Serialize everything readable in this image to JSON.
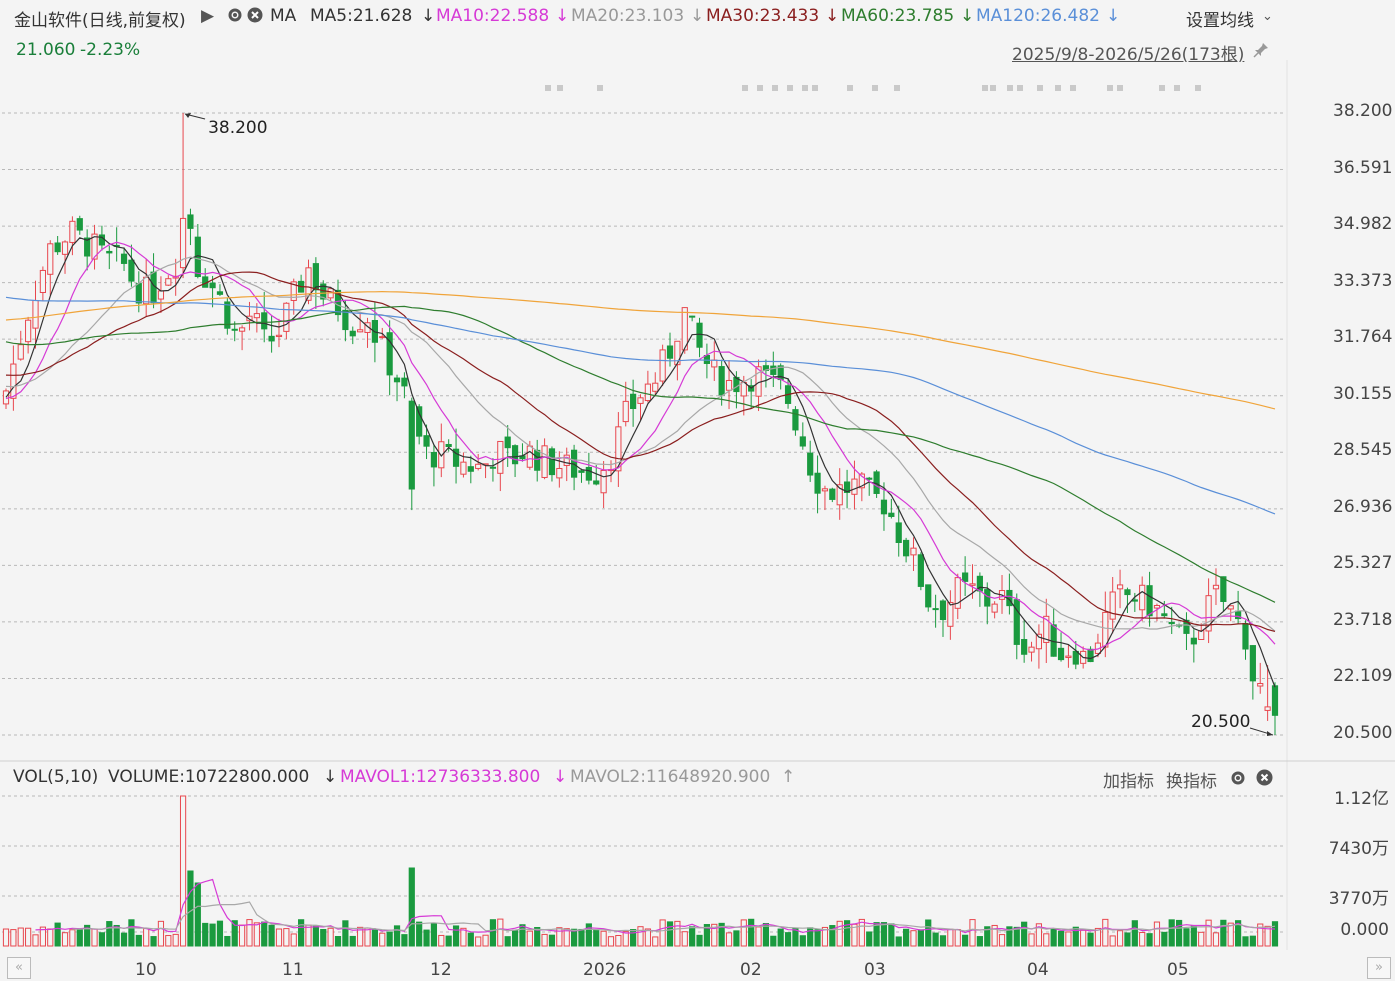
{
  "header": {
    "stock_name": "金山软件(日线,前复权)",
    "play_icon": "▶",
    "settings_icon": "gear-icon",
    "close_icon": "close-icon",
    "ma_label": "MA",
    "ma5": "MA5:21.628",
    "ma10": "MA10:22.588",
    "ma20": "MA20:23.103",
    "ma30": "MA30:23.433",
    "ma60": "MA60:23.785",
    "ma120": "MA120:26.482",
    "arrow_down": "↓",
    "settings_ma": "设置均线",
    "price": "21.060",
    "change": "-2.23%",
    "range": "2025/9/8-2026/5/26(173根)"
  },
  "colors": {
    "up": "#e8474e",
    "down": "#1a9a3f",
    "ma5": "#333333",
    "ma10": "#d63ad6",
    "ma20": "#a8a8a8",
    "ma30": "#8a1e1e",
    "ma60": "#2e7d2e",
    "ma120": "#5a8fd8",
    "ma250": "#f0a43a"
  },
  "volume_header": {
    "vol_label": "VOL(5,10)",
    "volume": "VOLUME:10722800.000",
    "mavol1": "MAVOL1:12736333.800",
    "mavol2": "MAVOL2:11648920.900",
    "up_arrow": "↑",
    "add_indicator": "加指标",
    "switch_indicator": "换指标"
  },
  "chart_data": {
    "type": "candlestick",
    "y_ticks": [
      "38.200",
      "36.591",
      "34.982",
      "33.373",
      "31.764",
      "30.155",
      "28.545",
      "26.936",
      "25.327",
      "23.718",
      "22.109",
      "20.500"
    ],
    "ylim": [
      20.5,
      38.2
    ],
    "high_marker": "38.200",
    "low_marker": "20.500",
    "volume_ticks": [
      "1.12亿",
      "7430万",
      "3770万",
      "0.000"
    ],
    "x_labels": [
      "10",
      "11",
      "12",
      "2026",
      "02",
      "03",
      "04",
      "05"
    ],
    "bars": 173
  }
}
